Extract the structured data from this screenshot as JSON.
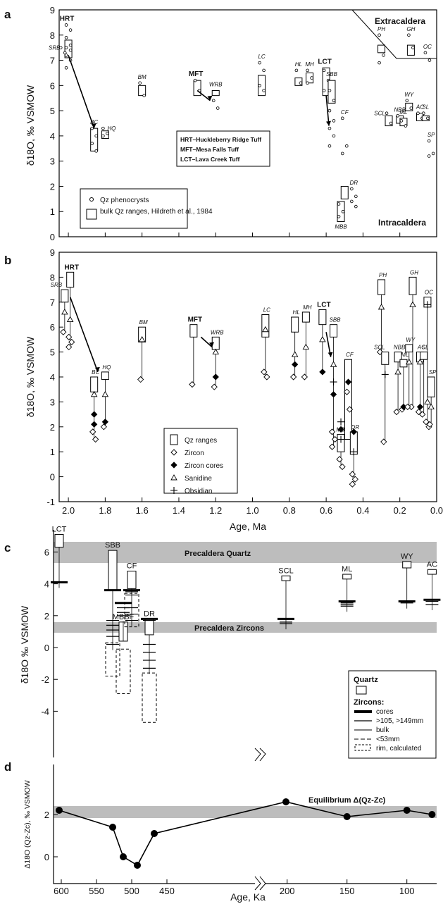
{
  "chart_data": [
    {
      "panel": "a",
      "type": "scatter",
      "xlabel": "",
      "ylabel": "δ18O, ‰ VSMOW",
      "xlim": [
        2.05,
        0.0
      ],
      "ylim": [
        0,
        9
      ],
      "xticks": [
        "2.0",
        "1.8",
        "1.6",
        "1.4",
        "1.2",
        "1.0",
        "0.8",
        "0.6",
        "0.4",
        "0.2",
        "0.0"
      ],
      "yticks": [
        "0",
        "1",
        "2",
        "3",
        "4",
        "5",
        "6",
        "7",
        "8",
        "9"
      ],
      "region_labels": [
        "Extracaldera",
        "Intracaldera"
      ],
      "legend_tuffs": [
        "HRT–Huckleberry Ridge Tuff",
        "MFT–Mesa Falls Tuff",
        "LCT–Lava Creek Tuff"
      ],
      "legend_symbols": [
        "Qz phenocrysts",
        "bulk Qz ranges, Hildreth et al., 1984"
      ],
      "units": [
        {
          "label": "HRT",
          "age": 2.0,
          "qz_range": [
            7.1,
            7.8
          ],
          "points": [
            8.4,
            8.2,
            7.9,
            7.6,
            7.5,
            7.4,
            7.2,
            7.0,
            6.7
          ]
        },
        {
          "label": "SRB",
          "age": 2.03,
          "qz_range": null,
          "points": [
            7.5,
            7.3
          ]
        },
        {
          "label": "BC",
          "age": 1.86,
          "qz_range": [
            3.4,
            4.3
          ],
          "points": [
            4.3,
            4.0,
            3.7,
            3.4
          ]
        },
        {
          "label": "HQ",
          "age": 1.8,
          "qz_range": [
            3.9,
            4.2
          ],
          "points": [
            4.3,
            4.1,
            4.0
          ]
        },
        {
          "label": "BM",
          "age": 1.6,
          "qz_range": [
            5.6,
            6.0
          ],
          "points": [
            6.1,
            5.6
          ]
        },
        {
          "label": "MFT",
          "age": 1.3,
          "qz_range": [
            5.6,
            6.2
          ],
          "points": [
            6.2,
            5.8
          ]
        },
        {
          "label": "WRB",
          "age": 1.2,
          "qz_range": [
            5.6,
            5.8
          ],
          "points": [
            5.4,
            5.1
          ]
        },
        {
          "label": "LC",
          "age": 0.95,
          "qz_range": [
            5.6,
            6.4
          ],
          "points": [
            6.9,
            6.6,
            6.0,
            5.8
          ]
        },
        {
          "label": "HL",
          "age": 0.75,
          "qz_range": [
            6.0,
            6.3
          ],
          "points": [
            6.6,
            6.1
          ]
        },
        {
          "label": "MH",
          "age": 0.69,
          "qz_range": [
            6.1,
            6.5
          ],
          "points": [
            6.6,
            6.3,
            6.1
          ]
        },
        {
          "label": "LCT",
          "age": 0.6,
          "qz_range": [
            5.6,
            6.7
          ],
          "points": [
            6.6,
            6.2,
            5.8
          ]
        },
        {
          "label": "SBB",
          "age": 0.57,
          "qz_range": [
            5.3,
            6.2
          ],
          "points": [
            5.8,
            5.4,
            5.0,
            4.6,
            4.3,
            4.0,
            3.6
          ]
        },
        {
          "label": "CF",
          "age": 0.5,
          "qz_range": [
            1.5,
            2.0
          ],
          "points": [
            4.7,
            3.6,
            3.3
          ]
        },
        {
          "label": "DR",
          "age": 0.45,
          "qz_range": null,
          "points": [
            1.9,
            1.6,
            1.4,
            1.2
          ]
        },
        {
          "label": "MBB",
          "age": 0.52,
          "qz_range": [
            0.6,
            1.4
          ],
          "points": [
            1.3,
            1.0,
            0.8
          ]
        },
        {
          "label": "PH",
          "age": 0.3,
          "qz_range": [
            7.3,
            7.6
          ],
          "points": [
            8.0,
            7.2,
            6.9
          ]
        },
        {
          "label": "GH",
          "age": 0.14,
          "qz_range": [
            7.2,
            7.6
          ],
          "points": [
            8.0,
            7.5
          ]
        },
        {
          "label": "OC",
          "age": 0.05,
          "qz_range": null,
          "points": [
            7.3,
            7.0
          ]
        },
        {
          "label": "SCL",
          "age": 0.26,
          "qz_range": [
            4.4,
            4.8
          ],
          "points": [
            4.9,
            4.5
          ]
        },
        {
          "label": "NBB",
          "age": 0.2,
          "qz_range": [
            4.5,
            4.8
          ],
          "points": [
            4.8,
            4.6
          ]
        },
        {
          "label": "ML",
          "age": 0.18,
          "qz_range": [
            4.4,
            4.7
          ],
          "points": [
            4.6,
            4.4
          ]
        },
        {
          "label": "WY",
          "age": 0.15,
          "qz_range": [
            5.0,
            5.3
          ],
          "points": [
            5.4,
            5.1
          ]
        },
        {
          "label": "AC",
          "age": 0.09,
          "qz_range": [
            4.6,
            4.9
          ],
          "points": [
            4.9,
            4.7
          ]
        },
        {
          "label": "SL",
          "age": 0.06,
          "qz_range": [
            4.6,
            4.8
          ],
          "points": [
            4.9,
            4.7
          ]
        },
        {
          "label": "SP",
          "age": 0.03,
          "qz_range": null,
          "points": [
            3.8,
            3.3,
            3.2
          ]
        }
      ]
    },
    {
      "panel": "b",
      "type": "scatter",
      "xlabel": "Age, Ma",
      "ylabel": "δ18O, ‰ VSMOW",
      "xlim": [
        2.05,
        0.0
      ],
      "ylim": [
        -1,
        9
      ],
      "xticks": [
        "2.0",
        "1.8",
        "1.6",
        "1.4",
        "1.2",
        "1.0",
        "0.8",
        "0.6",
        "0.4",
        "0.2",
        "0.0"
      ],
      "yticks": [
        "-1",
        "0",
        "1",
        "2",
        "3",
        "4",
        "5",
        "6",
        "7",
        "8",
        "9"
      ],
      "legend": [
        "Qz ranges",
        "Zircon",
        "Zircon cores",
        "Sanidine",
        "Obsidian"
      ],
      "units": [
        {
          "label": "HRT",
          "age": 1.99,
          "qz_range": [
            7.6,
            8.2
          ],
          "zircon": [
            5.6,
            5.4,
            5.2
          ],
          "sanidine": [
            6.3
          ],
          "obsidian": []
        },
        {
          "label": "SRB",
          "age": 2.02,
          "qz_range": [
            7.0,
            7.5
          ],
          "zircon": [
            5.8
          ],
          "sanidine": [
            6.6
          ],
          "obsidian": []
        },
        {
          "label": "BC",
          "age": 1.86,
          "qz_range": [
            3.4,
            4.0
          ],
          "zircon": [
            1.8,
            1.5
          ],
          "zircon_cores": [
            2.5,
            2.1
          ],
          "sanidine": [
            3.3
          ],
          "obsidian": []
        },
        {
          "label": "HQ",
          "age": 1.8,
          "qz_range": [
            3.9,
            4.2
          ],
          "zircon": [
            2.0
          ],
          "zircon_cores": [
            2.2
          ],
          "sanidine": [
            3.3
          ],
          "obsidian": []
        },
        {
          "label": "BM",
          "age": 1.6,
          "qz_range": [
            5.4,
            6.0
          ],
          "zircon": [
            3.9
          ],
          "sanidine": [
            5.5
          ],
          "obsidian": []
        },
        {
          "label": "MFT",
          "age": 1.32,
          "qz_range": [
            5.6,
            6.1
          ],
          "zircon": [
            3.7
          ],
          "sanidine": [],
          "obsidian": []
        },
        {
          "label": "WRB",
          "age": 1.2,
          "qz_range": [
            5.1,
            5.6
          ],
          "zircon": [
            3.6
          ],
          "zircon_cores": [
            4.0
          ],
          "sanidine": [
            5.0
          ],
          "obsidian": []
        },
        {
          "label": "LC",
          "age": 0.93,
          "qz_range": [
            5.6,
            6.5
          ],
          "zircon": [
            4.2,
            4.0
          ],
          "sanidine": [
            5.9
          ],
          "obsidian": []
        },
        {
          "label": "HL",
          "age": 0.77,
          "qz_range": [
            5.8,
            6.4
          ],
          "zircon": [
            4.0
          ],
          "zircon_cores": [
            4.5
          ],
          "sanidine": [
            4.9
          ],
          "obsidian": []
        },
        {
          "label": "MH",
          "age": 0.71,
          "qz_range": [
            6.2,
            6.6
          ],
          "zircon": [
            4.0
          ],
          "sanidine": [
            5.2
          ],
          "obsidian": []
        },
        {
          "label": "LCT",
          "age": 0.62,
          "qz_range": [
            6.1,
            6.7
          ],
          "zircon_cores": [
            4.2
          ],
          "sanidine": [
            5.5
          ],
          "obsidian": []
        },
        {
          "label": "SBB",
          "age": 0.56,
          "qz_range": [
            5.6,
            6.1
          ],
          "zircon": [
            1.8,
            1.5,
            1.2
          ],
          "zircon_cores": [
            3.3
          ],
          "sanidine": [
            4.5
          ],
          "obsidian": [
            3.8
          ]
        },
        {
          "label": "MBB",
          "age": 0.52,
          "qz_range": [
            1.0,
            1.7
          ],
          "zircon": [
            0.7,
            0.4
          ],
          "zircon_cores": [
            1.9
          ],
          "sanidine": [],
          "obsidian": [
            2.2,
            1.5
          ]
        },
        {
          "label": "CF",
          "age": 0.48,
          "qz_range": [
            1.5,
            4.7
          ],
          "zircon": [
            3.4,
            2.7
          ],
          "zircon_cores": [
            3.8
          ],
          "sanidine": [],
          "obsidian": []
        },
        {
          "label": "DR",
          "age": 0.45,
          "qz_range": [
            0.9,
            1.8
          ],
          "zircon": [
            0.1,
            -0.1,
            -0.3
          ],
          "zircon_cores": [
            1.8
          ],
          "sanidine": [],
          "obsidian": [
            1.0
          ]
        },
        {
          "label": "PH",
          "age": 0.3,
          "qz_range": [
            7.3,
            7.9
          ],
          "zircon": [
            5.0
          ],
          "sanidine": [
            6.8
          ],
          "obsidian": []
        },
        {
          "label": "SCL",
          "age": 0.28,
          "qz_range": [
            4.5,
            5.0
          ],
          "zircon": [
            1.4
          ],
          "sanidine": [],
          "obsidian": [
            4.1
          ]
        },
        {
          "label": "NBB",
          "age": 0.21,
          "qz_range": [
            4.6,
            5.0
          ],
          "zircon": [
            2.6
          ],
          "sanidine": [
            4.2
          ],
          "obsidian": []
        },
        {
          "label": "ML",
          "age": 0.18,
          "qz_range": [
            4.4,
            4.7
          ],
          "zircon": [
            2.7
          ],
          "zircon_cores": [
            2.8
          ],
          "sanidine": [],
          "obsidian": []
        },
        {
          "label": "GH",
          "age": 0.13,
          "qz_range": [
            7.3,
            8.0
          ],
          "zircon": [
            2.8
          ],
          "sanidine": [
            6.9
          ],
          "obsidian": []
        },
        {
          "label": "WY",
          "age": 0.15,
          "qz_range": [
            5.0,
            5.3
          ],
          "zircon": [
            2.8
          ],
          "sanidine": [
            4.6
          ],
          "obsidian": []
        },
        {
          "label": "AC",
          "age": 0.09,
          "qz_range": [
            4.6,
            5.0
          ],
          "zircon": [
            2.6
          ],
          "zircon_cores": [
            2.8
          ],
          "sanidine": [
            4.6
          ],
          "obsidian": []
        },
        {
          "label": "SL",
          "age": 0.07,
          "qz_range": [
            4.7,
            5.0
          ],
          "zircon": [
            2.5
          ],
          "sanidine": [],
          "obsidian": []
        },
        {
          "label": "OC",
          "age": 0.05,
          "qz_range": [
            6.8,
            7.2
          ],
          "zircon": [
            2.2,
            2.0
          ],
          "sanidine": [
            3.0
          ],
          "obsidian": [
            6.9
          ]
        },
        {
          "label": "SP",
          "age": 0.03,
          "qz_range": [
            3.2,
            4.0
          ],
          "zircon": [
            2.1
          ],
          "sanidine": [
            2.8
          ],
          "obsidian": []
        }
      ]
    },
    {
      "panel": "c",
      "type": "range",
      "xlabel": "",
      "ylabel": "δ18O ‰ VSMOW",
      "ylim": [
        -5,
        7
      ],
      "yticks": [
        "6",
        "4",
        "2",
        "0",
        "-2",
        "-4"
      ],
      "bands": [
        {
          "label": "Precaldera Quartz",
          "range": [
            5.6,
            6.8
          ]
        },
        {
          "label": "Precaldera Zircons",
          "range": [
            3.8,
            4.3
          ]
        }
      ],
      "legend": {
        "title": "Quartz",
        "zircon_title": "Zircons:",
        "entries": [
          "cores",
          "&gt;105, &gt;149mm",
          "bulk",
          "&lt;53mm",
          "rim, calculated"
        ]
      },
      "units": [
        {
          "label": "LCT",
          "age_ka": 603,
          "qz_range": [
            6.3,
            7.1
          ],
          "zircons": [
            4.1
          ]
        },
        {
          "label": "SBB",
          "age_ka": 527,
          "qz_range": [
            3.6,
            6.1
          ],
          "zircons": [
            3.6,
            1.7,
            1.4,
            1.1,
            0.7,
            0.2
          ],
          "rim": [
            -1.8,
            0.3
          ]
        },
        {
          "label": "MBBF",
          "age_ka": 512,
          "qz_range": [
            0.4,
            1.6
          ],
          "zircons": [
            2.8,
            2.5,
            2.2,
            2.0
          ],
          "rim": [
            -2.9,
            -0.1
          ]
        },
        {
          "label": "CF",
          "age_ka": 500,
          "qz_range": [
            3.7,
            4.8
          ],
          "zircons": [
            3.6,
            3.5,
            3.3,
            2.5,
            2.1,
            1.7
          ],
          "rim": [
            1.3,
            3.4
          ]
        },
        {
          "label": "DR",
          "age_ka": 475,
          "qz_range": [
            0.8,
            1.8
          ],
          "zircons": [
            1.8,
            1.7,
            0.2,
            -0.3,
            -0.8,
            -1.3
          ],
          "rim": [
            -4.7,
            -1.6
          ]
        },
        {
          "label": "SCL",
          "age_ka": 201,
          "qz_range": [
            4.2,
            4.5
          ],
          "zircons": [
            1.8,
            1.6,
            1.5
          ]
        },
        {
          "label": "ML",
          "age_ka": 150,
          "qz_range": [
            4.3,
            4.6
          ],
          "zircons": [
            2.9,
            2.8,
            2.7,
            2.6
          ]
        },
        {
          "label": "WY",
          "age_ka": 100,
          "qz_range": [
            5.0,
            5.4
          ],
          "zircons": [
            2.9,
            2.8
          ]
        },
        {
          "label": "AC",
          "age_ka": 79,
          "qz_range": [
            4.6,
            4.9
          ],
          "zircons": [
            3.0,
            2.9,
            2.7
          ]
        }
      ]
    },
    {
      "panel": "d",
      "type": "line",
      "xlabel": "Age, Ka",
      "ylabel": "Δ18O (Qz-Zc), ‰ VSMOW",
      "ylim": [
        -0.6,
        3.2
      ],
      "yticks": [
        "2",
        "0"
      ],
      "xticks": [
        "600",
        "550",
        "500",
        "450",
        "200",
        "150",
        "100"
      ],
      "band": {
        "label": "Equilibrium Δ(Qz-Zc)",
        "range": [
          1.9,
          2.5
        ]
      },
      "x": [
        603,
        527,
        512,
        492,
        468,
        201,
        150,
        100,
        79
      ],
      "y": [
        2.2,
        1.4,
        0.0,
        -0.4,
        1.1,
        2.6,
        1.9,
        2.2,
        2.0
      ]
    }
  ]
}
